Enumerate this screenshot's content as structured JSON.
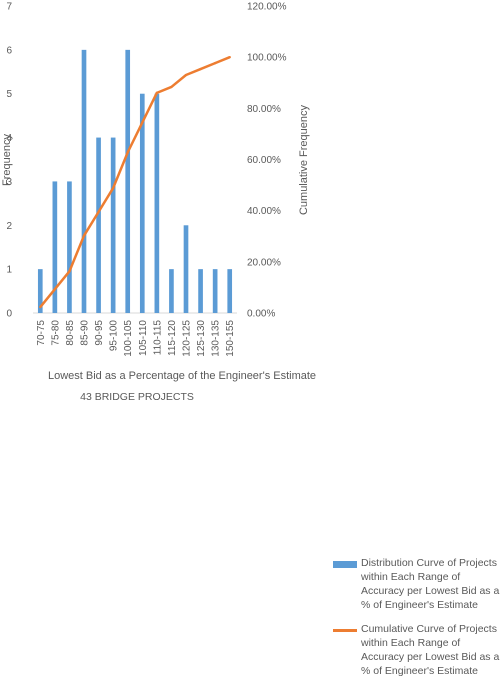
{
  "chart_data": {
    "type": "bar",
    "categories": [
      "70-75",
      "75-80",
      "80-85",
      "85-90",
      "90-95",
      "95-100",
      "100-105",
      "105-110",
      "110-115",
      "115-120",
      "120-125",
      "125-130",
      "130-135",
      "150-155"
    ],
    "series": [
      {
        "name": "Distribution Curve of Projects within Each Range of Accuracy per Lowest Bid as a % of Engineer's Estimate",
        "type": "bar",
        "axis": "left",
        "values": [
          1,
          3,
          3,
          6,
          4,
          4,
          6,
          5,
          5,
          1,
          2,
          1,
          1,
          1
        ],
        "color": "#5b9bd5"
      },
      {
        "name": "Cumulative Curve of Projects within Each Range of Accuracy per Lowest Bid as a % of Engineer's Estimate",
        "type": "line",
        "axis": "right",
        "values": [
          2.33,
          9.3,
          16.28,
          30.23,
          39.53,
          48.84,
          62.79,
          74.42,
          86.05,
          88.37,
          93.02,
          95.35,
          97.67,
          100.0
        ],
        "color": "#ed7d31"
      }
    ],
    "y_left": {
      "min": 0,
      "max": 7,
      "ticks": [
        "0",
        "1",
        "2",
        "3",
        "4",
        "5",
        "6",
        "7"
      ],
      "label": "Frequency"
    },
    "y_right": {
      "min": 0,
      "max": 120,
      "ticks": [
        "0.00%",
        "20.00%",
        "40.00%",
        "60.00%",
        "80.00%",
        "100.00%",
        "120.00%"
      ],
      "label": "Cumulative Frequency"
    },
    "xlabel": "Lowest Bid as a Percentage of the Engineer's Estimate",
    "subtitle": "43 BRIDGE PROJECTS",
    "grid": false,
    "legend_position": "right"
  }
}
